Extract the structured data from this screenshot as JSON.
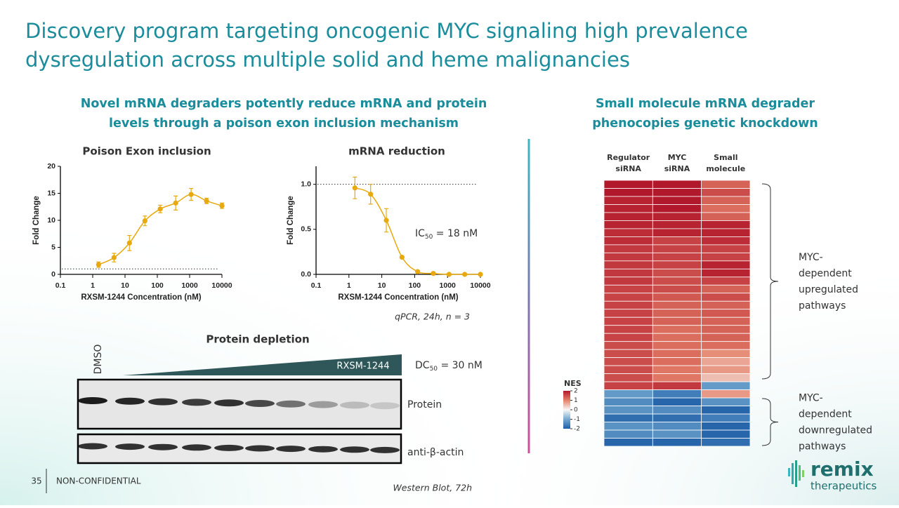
{
  "title": [
    "Discovery program targeting oncogenic MYC signaling high prevalence",
    "dysregulation across multiple solid and heme malignancies"
  ],
  "left_heading": [
    "Novel mRNA degraders potently reduce mRNA and protein",
    "levels through a poison exon inclusion mechanism"
  ],
  "right_heading": [
    "Small molecule mRNA degrader",
    "phenocopies genetic knockdown"
  ],
  "chart_data": [
    {
      "type": "scatter",
      "title": "Poison Exon inclusion",
      "x_label": "RXSM-1244 Concentration (nM)",
      "y_label": "Fold Change",
      "x_log": true,
      "x": [
        1.52,
        4.57,
        13.7,
        41.2,
        123,
        370,
        1111,
        3333,
        10000
      ],
      "values": [
        1.8,
        3.1,
        5.8,
        9.9,
        12.1,
        13.2,
        14.8,
        13.6,
        12.7
      ],
      "errors": [
        0.5,
        0.8,
        1.4,
        0.9,
        0.7,
        1.3,
        1.1,
        0.5,
        0.5
      ],
      "color": "#e8a90e",
      "xlim": [
        0.1,
        10000
      ],
      "xticks": [
        0.1,
        1,
        10,
        100,
        1000,
        10000
      ],
      "ylim": [
        0,
        20
      ],
      "yticks": [
        0,
        5,
        10,
        15,
        20
      ],
      "hline": 1
    },
    {
      "type": "scatter",
      "title": "mRNA reduction",
      "x_label": "RXSM-1244 Concentration (nM)",
      "y_label": "Fold Change",
      "x_log": true,
      "x": [
        1.52,
        4.57,
        13.7,
        41.2,
        123,
        370,
        1111,
        3333,
        10000
      ],
      "values": [
        0.96,
        0.89,
        0.6,
        0.19,
        0.03,
        0.01,
        0,
        0,
        0
      ],
      "errors": [
        0.12,
        0.11,
        0.13,
        0.01,
        0.01,
        0.01,
        0.01,
        0.01,
        0.01
      ],
      "color": "#e8a90e",
      "xlim": [
        0.1,
        10000
      ],
      "xticks": [
        0.1,
        1,
        10,
        100,
        1000,
        10000
      ],
      "ylim": [
        0,
        1.2
      ],
      "yticks": [
        {
          "value": 0,
          "label": "0.0"
        },
        {
          "value": 0.5,
          "label": "0.5"
        },
        {
          "value": 1,
          "label": "1.0"
        }
      ],
      "hline": 1,
      "annotation": {
        "prefix": "IC",
        "sub": "50",
        "suffix": " = 18 nM"
      },
      "note": "qPCR, 24h, n = 3"
    },
    {
      "type": "heatmap",
      "columns": [
        [
          "Regulator",
          "siRNA"
        ],
        [
          "MYC",
          "siRNA"
        ],
        [
          "Small",
          "molecule"
        ]
      ],
      "values": [
        [
          2.0,
          2.0,
          1.3
        ],
        [
          2.0,
          2.0,
          1.5
        ],
        [
          1.9,
          2.0,
          1.3
        ],
        [
          1.9,
          2.0,
          1.2
        ],
        [
          1.9,
          1.9,
          1.3
        ],
        [
          1.9,
          1.9,
          1.9
        ],
        [
          1.8,
          1.9,
          1.9
        ],
        [
          1.8,
          1.6,
          1.8
        ],
        [
          1.7,
          1.6,
          1.6
        ],
        [
          1.7,
          1.6,
          1.6
        ],
        [
          1.7,
          1.6,
          1.9
        ],
        [
          1.7,
          1.5,
          1.9
        ],
        [
          1.7,
          1.5,
          1.6
        ],
        [
          1.6,
          1.5,
          1.3
        ],
        [
          1.6,
          1.4,
          1.5
        ],
        [
          1.6,
          1.3,
          1.3
        ],
        [
          1.6,
          1.3,
          1.4
        ],
        [
          1.6,
          1.3,
          1.3
        ],
        [
          1.6,
          1.2,
          1.3
        ],
        [
          1.6,
          1.2,
          1.3
        ],
        [
          1.5,
          1.2,
          1.2
        ],
        [
          1.5,
          1.2,
          0.9
        ],
        [
          1.5,
          1.2,
          0.7
        ],
        [
          1.5,
          1.1,
          0.8
        ],
        [
          1.5,
          1.1,
          0.5
        ],
        [
          1.6,
          1.7,
          -1.2
        ],
        [
          -1.2,
          -1.6,
          0.8
        ],
        [
          -1.4,
          -1.9,
          -1.3
        ],
        [
          -1.3,
          -1.4,
          -1.9
        ],
        [
          -1.8,
          -1.8,
          -1.6
        ],
        [
          -1.3,
          -1.4,
          -1.9
        ],
        [
          -1.4,
          -1.3,
          -1.9
        ],
        [
          -1.9,
          -1.9,
          -1.8
        ]
      ],
      "colorbar": {
        "label": "NES",
        "lim": [
          -2,
          2
        ],
        "ticks": [
          2,
          1,
          0,
          -1,
          -2
        ]
      },
      "groups": [
        [
          "MYC-",
          "dependent",
          "upregulated",
          "pathways"
        ],
        [
          "MYC-",
          "dependent",
          "downregulated",
          "pathways"
        ]
      ]
    }
  ],
  "western_blot": {
    "title": "Protein depletion",
    "control": "DMSO",
    "compound": "RXSM-1244",
    "annotation": {
      "prefix": "DC",
      "sub": "50",
      "suffix": " = 30 nM"
    },
    "rows": [
      "Protein",
      "anti-β-actin"
    ],
    "note": "Western Blot, 72h"
  },
  "footer": {
    "page": "35",
    "label": "NON-CONFIDENTIAL"
  },
  "logo": {
    "name": "remix",
    "sub": "therapeutics"
  }
}
